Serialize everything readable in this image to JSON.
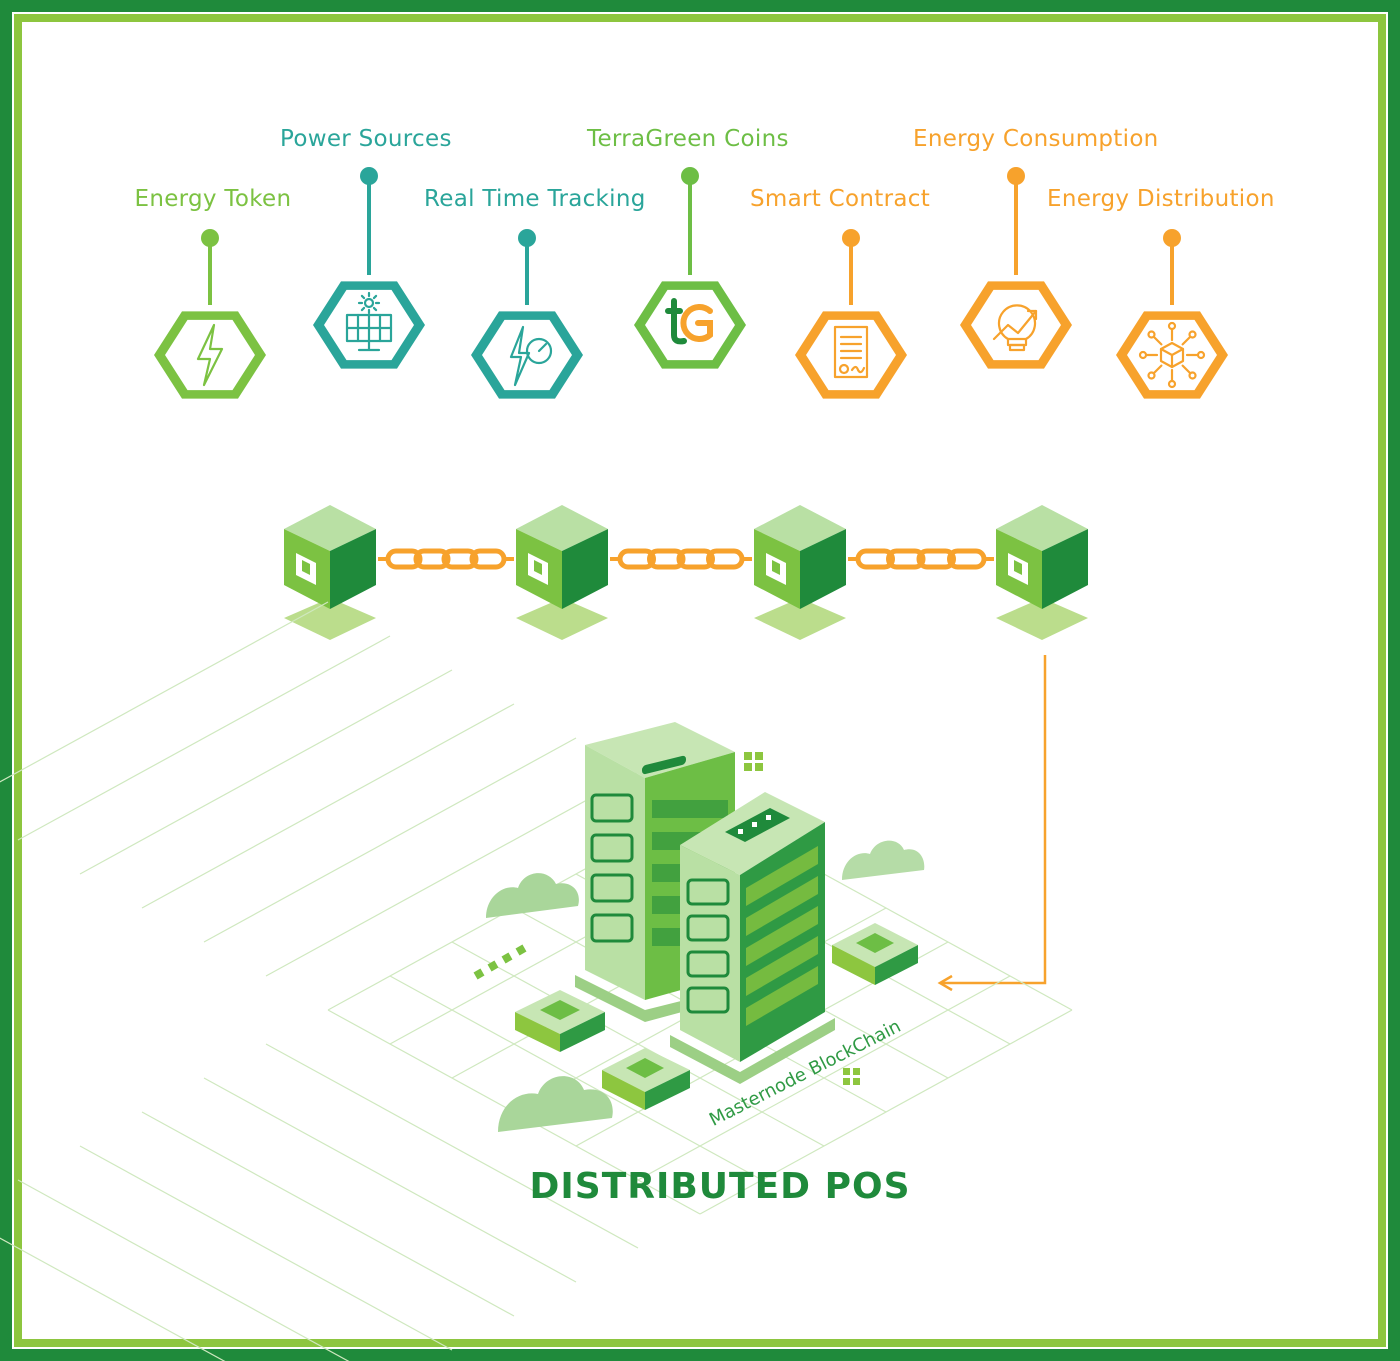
{
  "colors": {
    "frame_outer": "#1f8a3b",
    "frame_inner": "#8dc63f",
    "green": "#6dbe45",
    "teal": "#2aa59a",
    "orange": "#f7a22c",
    "dark_green": "#1f8a3b",
    "title": "#1f8a3b"
  },
  "nodes": [
    {
      "id": "energy-token",
      "label": "Energy Token",
      "icon": "lightning-bolt-icon",
      "color": "#7cc242"
    },
    {
      "id": "power-sources",
      "label": "Power Sources",
      "icon": "solar-panel-icon",
      "color": "#2aa59a"
    },
    {
      "id": "real-time-tracking",
      "label": "Real Time Tracking",
      "icon": "bolt-gauge-icon",
      "color": "#2aa59a"
    },
    {
      "id": "terragreen-coins",
      "label": "TerraGreen Coins",
      "icon": "terragreen-logo-icon",
      "color": "#6dbe45"
    },
    {
      "id": "smart-contract",
      "label": "Smart Contract",
      "icon": "contract-document-icon",
      "color": "#f7a22c"
    },
    {
      "id": "energy-consumption",
      "label": "Energy Consumption",
      "icon": "lightbulb-growth-icon",
      "color": "#f7a22c"
    },
    {
      "id": "energy-distribution",
      "label": "Energy Distribution",
      "icon": "network-cube-icon",
      "color": "#f7a22c"
    }
  ],
  "blockchain": {
    "blocks": 4,
    "links": 3,
    "block_icon": "block-cube-icon",
    "link_icon": "chain-link-icon"
  },
  "masternode_label": "Masternode BlockChain",
  "title": "DISTRIBUTED POS"
}
